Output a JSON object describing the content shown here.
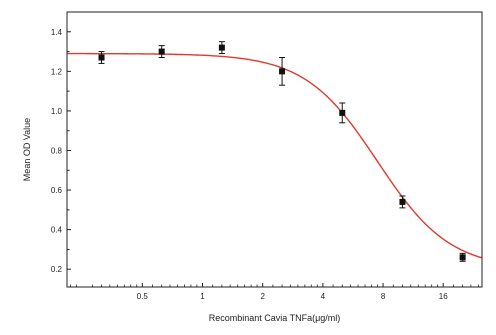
{
  "chart_data": {
    "type": "scatter",
    "title": "",
    "xlabel": "Recombinant Cavia TNFa(μg/ml)",
    "ylabel": "Mean OD Value",
    "x_scale": "log2",
    "xlim": [
      0.21,
      25
    ],
    "ylim": [
      0.11,
      1.5
    ],
    "x_ticks": [
      0.5,
      1,
      2,
      4,
      8,
      16
    ],
    "x_tick_labels": [
      "0.5",
      "1",
      "2",
      "4",
      "8",
      "16"
    ],
    "y_ticks": [
      0.2,
      0.4,
      0.6,
      0.8,
      1.0,
      1.2,
      1.4
    ],
    "y_tick_labels": [
      "0.2",
      "0.4",
      "0.6",
      "0.8",
      "1.0",
      "1.2",
      "1.4"
    ],
    "grid": false,
    "legend": "none",
    "series": [
      {
        "points": [
          {
            "x": 0.3125,
            "y": 1.27,
            "err": 0.03
          },
          {
            "x": 0.625,
            "y": 1.3,
            "err": 0.03
          },
          {
            "x": 1.25,
            "y": 1.32,
            "err": 0.03
          },
          {
            "x": 2.5,
            "y": 1.2,
            "err": 0.07
          },
          {
            "x": 5,
            "y": 0.99,
            "err": 0.05
          },
          {
            "x": 10,
            "y": 0.54,
            "err": 0.03
          },
          {
            "x": 20,
            "y": 0.26,
            "err": 0.02
          }
        ],
        "marker_color": "#111111"
      }
    ],
    "fit_curve": {
      "model": "4PL",
      "top": 1.29,
      "bottom": 0.2,
      "ec50": 7.5,
      "hill": 2.4,
      "color": "#e03a2e"
    }
  }
}
